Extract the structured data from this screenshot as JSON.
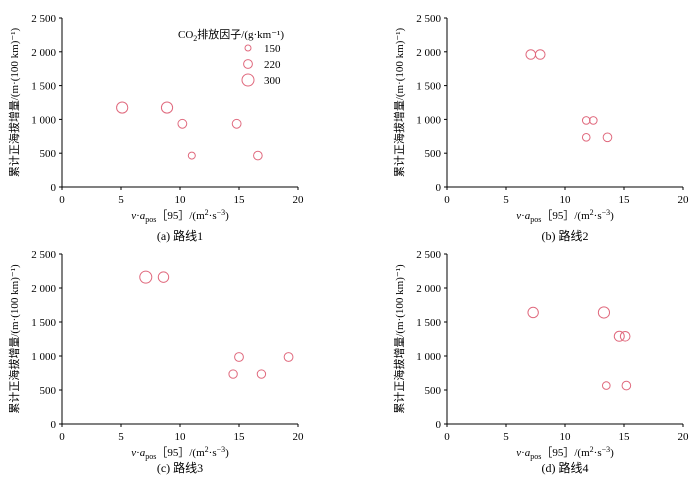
{
  "legend": {
    "title": "CO2排放因子/(g·km⁻¹)",
    "title_prefix": "CO",
    "title_sub": "2",
    "title_suffix": "排放因子/(g·km⁻¹)",
    "entries": [
      {
        "label": "150",
        "value": 150
      },
      {
        "label": "220",
        "value": 220
      },
      {
        "label": "300",
        "value": 300
      }
    ]
  },
  "marker_color": "#e06a7e",
  "chart_data": [
    {
      "type": "scatter",
      "caption": "(a) 路线1",
      "xlabel": "v·apos[95]/(m²·s⁻³)",
      "ylabel": "累计正海拔增量/(m·(100 km)⁻¹)",
      "xlim": [
        0,
        20
      ],
      "ylim": [
        0,
        2500
      ],
      "xticks": [
        "0",
        "5",
        "10",
        "15",
        "20"
      ],
      "yticks": [
        "0",
        "500",
        "1 000",
        "1 500",
        "2 000",
        "2 500"
      ],
      "points": [
        {
          "x": 5.1,
          "y": 1175,
          "co2": 280
        },
        {
          "x": 8.9,
          "y": 1175,
          "co2": 280
        },
        {
          "x": 10.2,
          "y": 935,
          "co2": 220
        },
        {
          "x": 11.0,
          "y": 465,
          "co2": 175
        },
        {
          "x": 14.8,
          "y": 935,
          "co2": 220
        },
        {
          "x": 16.6,
          "y": 465,
          "co2": 215
        }
      ]
    },
    {
      "type": "scatter",
      "caption": "(b) 路线2",
      "xlabel": "v·apos[95]/(m²·s⁻³)",
      "ylabel": "累计正海拔增量/(m·(100 km)⁻¹)",
      "xlim": [
        0,
        20
      ],
      "ylim": [
        0,
        2500
      ],
      "xticks": [
        "0",
        "5",
        "10",
        "15",
        "20"
      ],
      "yticks": [
        "0",
        "500",
        "1 000",
        "1 500",
        "2 000",
        "2 500"
      ],
      "points": [
        {
          "x": 7.1,
          "y": 1960,
          "co2": 240
        },
        {
          "x": 7.9,
          "y": 1960,
          "co2": 240
        },
        {
          "x": 11.8,
          "y": 985,
          "co2": 190
        },
        {
          "x": 12.4,
          "y": 985,
          "co2": 190
        },
        {
          "x": 11.8,
          "y": 735,
          "co2": 190
        },
        {
          "x": 13.6,
          "y": 735,
          "co2": 215
        }
      ]
    },
    {
      "type": "scatter",
      "caption": "(c) 路线3",
      "xlabel": "v·apos[95]/(m²·s⁻³)",
      "ylabel": "累计正海拔增量/(m·(100 km)⁻¹)",
      "xlim": [
        0,
        20
      ],
      "ylim": [
        0,
        2500
      ],
      "xticks": [
        "0",
        "5",
        "10",
        "15",
        "20"
      ],
      "yticks": [
        "0",
        "500",
        "1 000",
        "1 500",
        "2 000",
        "2 500"
      ],
      "points": [
        {
          "x": 7.1,
          "y": 2160,
          "co2": 300
        },
        {
          "x": 8.6,
          "y": 2160,
          "co2": 260
        },
        {
          "x": 15.0,
          "y": 985,
          "co2": 220
        },
        {
          "x": 19.2,
          "y": 985,
          "co2": 220
        },
        {
          "x": 14.5,
          "y": 735,
          "co2": 210
        },
        {
          "x": 16.9,
          "y": 735,
          "co2": 210
        }
      ]
    },
    {
      "type": "scatter",
      "caption": "(d) 路线4",
      "xlabel": "v·apos[95]/(m²·s⁻³)",
      "ylabel": "累计正海拔增量/(m·(100 km)⁻¹)",
      "xlim": [
        0,
        20
      ],
      "ylim": [
        0,
        2500
      ],
      "xticks": [
        "0",
        "5",
        "10",
        "15",
        "20"
      ],
      "yticks": [
        "0",
        "500",
        "1 000",
        "1 500",
        "2 000",
        "2 500"
      ],
      "points": [
        {
          "x": 7.3,
          "y": 1640,
          "co2": 260
        },
        {
          "x": 13.3,
          "y": 1640,
          "co2": 280
        },
        {
          "x": 14.6,
          "y": 1290,
          "co2": 250
        },
        {
          "x": 15.1,
          "y": 1290,
          "co2": 240
        },
        {
          "x": 13.5,
          "y": 565,
          "co2": 190
        },
        {
          "x": 15.2,
          "y": 565,
          "co2": 215
        }
      ]
    }
  ]
}
